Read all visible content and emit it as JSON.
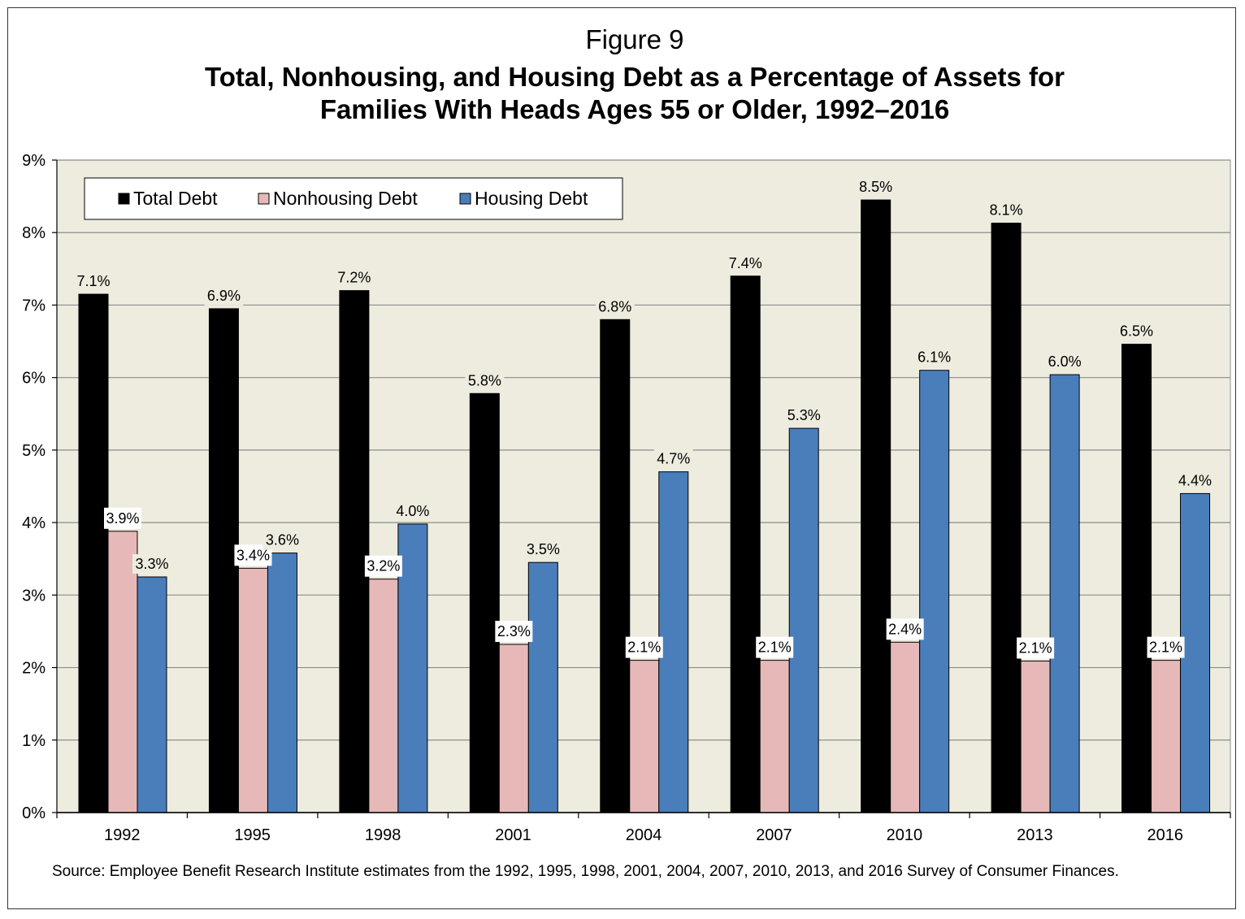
{
  "figure_label": "Figure 9",
  "title_line1": "Total, Nonhousing, and Housing Debt as a Percentage of Assets for",
  "title_line2": "Families With Heads Ages 55 or Older, 1992–2016",
  "source": "Source: Employee Benefit Research Institute estimates from the 1992, 1995, 1998, 2001, 2004, 2007, 2010, 2013, and 2016 Survey of Consumer Finances.",
  "colors": {
    "plot_background": "#eeecdf",
    "total": "#000000",
    "nonhousing": "#e6b9b8",
    "housing": "#4a7ebb",
    "grid": "#8c8c8c"
  },
  "chart_data": {
    "type": "bar",
    "title": "Total, Nonhousing, and Housing Debt as a Percentage of Assets for Families With Heads Ages 55 or Older, 1992–2016",
    "xlabel": "",
    "ylabel": "",
    "ylim": [
      0,
      9
    ],
    "y_ticks": [
      "0%",
      "1%",
      "2%",
      "3%",
      "4%",
      "5%",
      "6%",
      "7%",
      "8%",
      "9%"
    ],
    "grid": true,
    "legend_position": "top-left",
    "categories": [
      "1992",
      "1995",
      "1998",
      "2001",
      "2004",
      "2007",
      "2010",
      "2013",
      "2016"
    ],
    "series": [
      {
        "name": "Total Debt",
        "values": [
          7.15,
          6.95,
          7.2,
          5.78,
          6.8,
          7.4,
          8.45,
          8.13,
          6.46
        ],
        "labels": [
          "7.1%",
          "6.9%",
          "7.2%",
          "5.8%",
          "6.8%",
          "7.4%",
          "8.5%",
          "8.1%",
          "6.5%"
        ]
      },
      {
        "name": "Nonhousing Debt",
        "values": [
          3.88,
          3.37,
          3.22,
          2.32,
          2.1,
          2.1,
          2.35,
          2.09,
          2.1
        ],
        "labels": [
          "3.9%",
          "3.4%",
          "3.2%",
          "2.3%",
          "2.1%",
          "2.1%",
          "2.4%",
          "2.1%",
          "2.1%"
        ]
      },
      {
        "name": "Housing Debt",
        "values": [
          3.25,
          3.58,
          3.98,
          3.45,
          4.7,
          5.3,
          6.1,
          6.04,
          4.4
        ],
        "labels": [
          "3.3%",
          "3.6%",
          "4.0%",
          "3.5%",
          "4.7%",
          "5.3%",
          "6.1%",
          "6.0%",
          "4.4%"
        ]
      }
    ]
  }
}
